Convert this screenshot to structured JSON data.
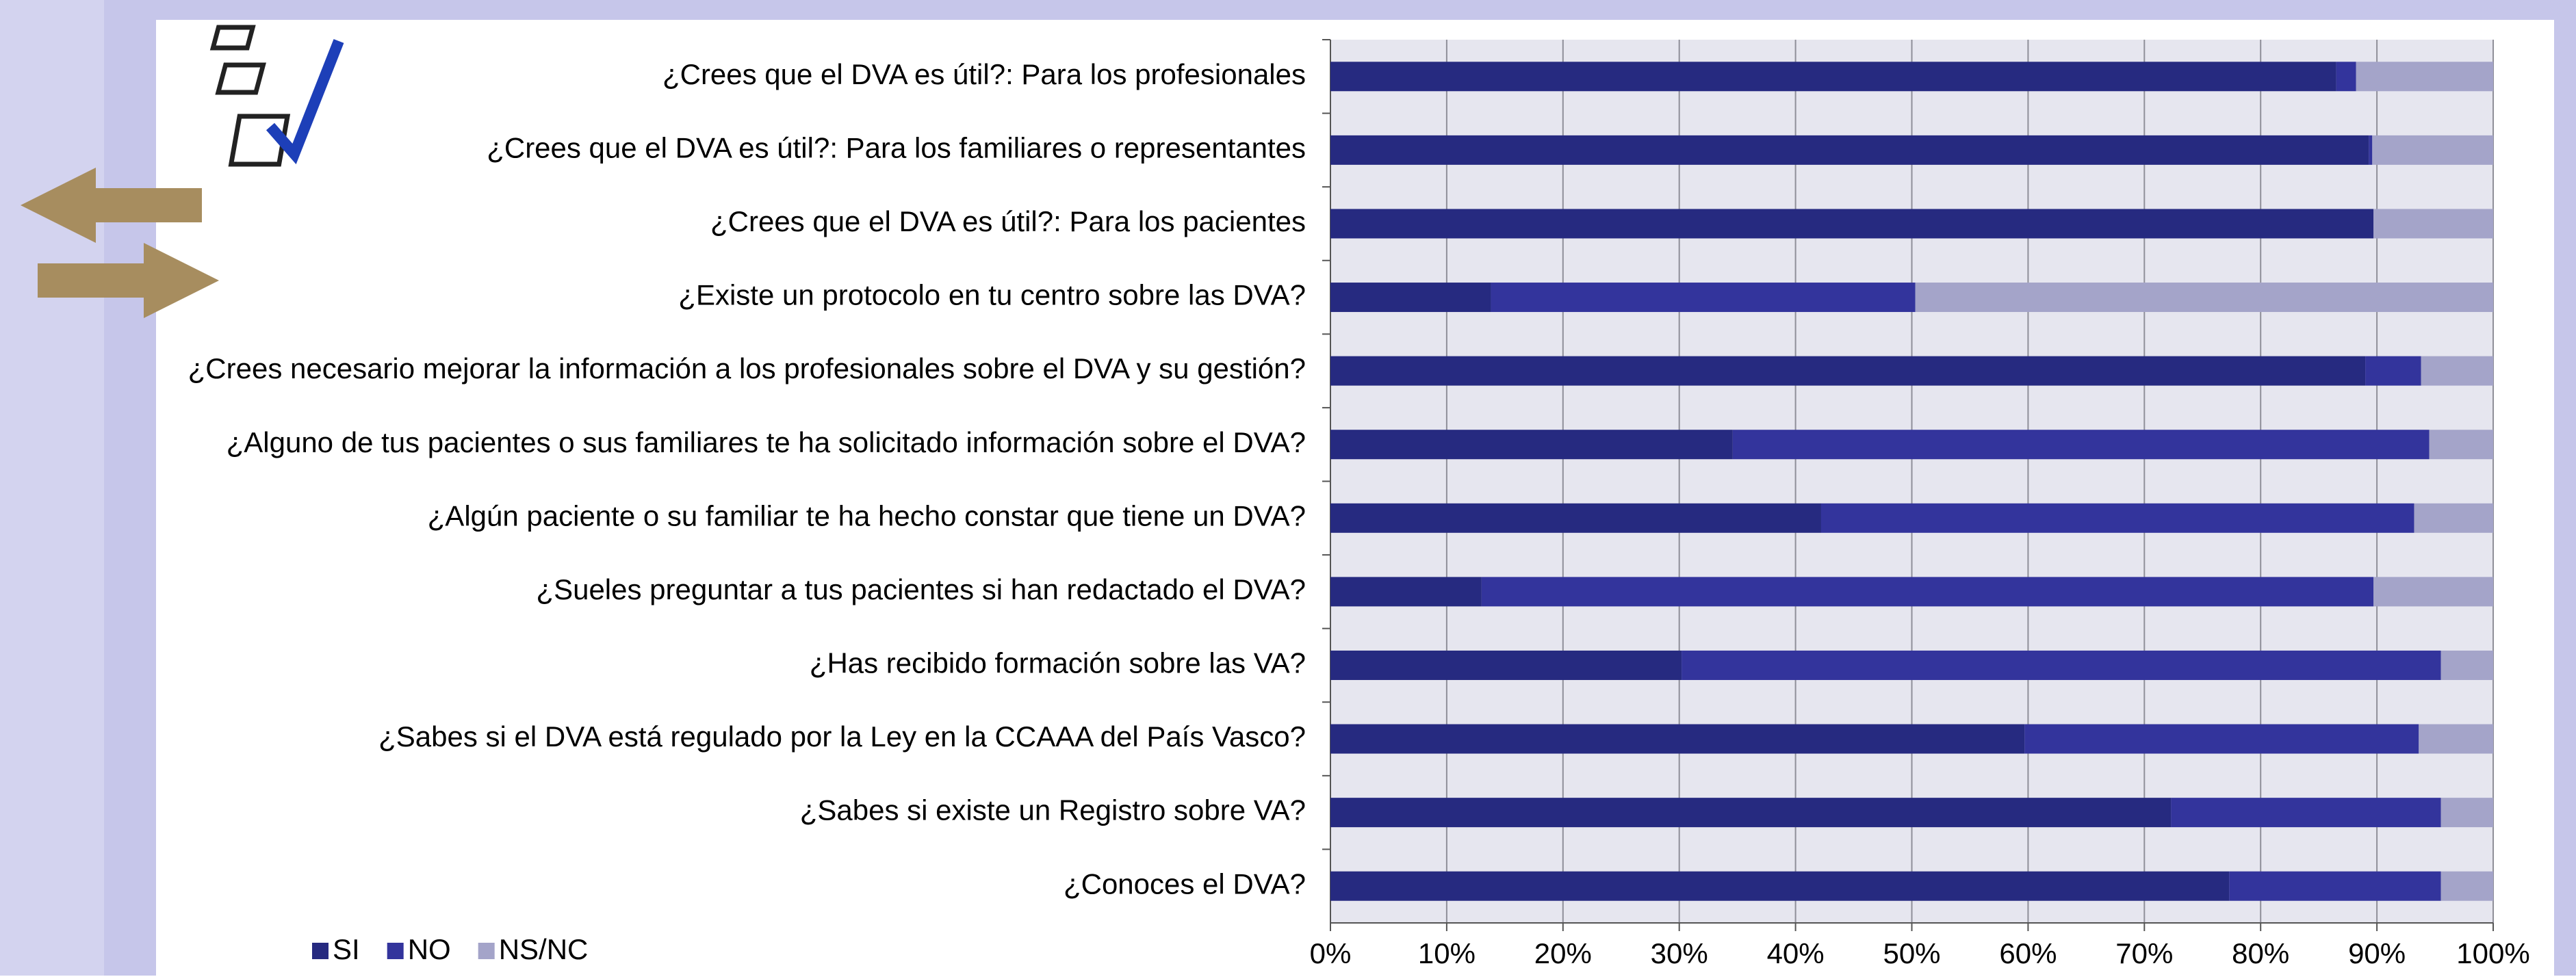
{
  "chart_data": {
    "type": "stacked-bar-horizontal",
    "categories": [
      "¿Crees que el DVA es útil?: Para los profesionales",
      "¿Crees que el DVA es útil?: Para los familiares o representantes",
      "¿Crees que el DVA es útil?: Para los pacientes",
      "¿Existe un protocolo en tu centro sobre las DVA?",
      "¿Crees necesario mejorar la información a los profesionales sobre el DVA y su gestión?",
      "¿Alguno de tus pacientes o sus familiares te ha solicitado información sobre el DVA?",
      "¿Algún paciente o su familiar te ha hecho constar que tiene un DVA?",
      "¿Sueles preguntar a tus pacientes si han redactado el DVA?",
      "¿Has recibido formación sobre las VA?",
      "¿Sabes si el DVA está regulado por la Ley en la CCAAA del País Vasco?",
      "¿Sabes si existe un Registro sobre VA?",
      "¿Conoces el DVA?"
    ],
    "series": [
      {
        "name": "SI",
        "color": "#262a80",
        "values": [
          86.5,
          89.3,
          89.7,
          13.8,
          89.0,
          34.6,
          42.2,
          13.0,
          30.2,
          59.7,
          72.3,
          77.3
        ]
      },
      {
        "name": "NO",
        "color": "#33349c",
        "values": [
          1.7,
          0.3,
          0,
          36.5,
          4.8,
          59.9,
          51.0,
          76.7,
          65.3,
          33.9,
          23.2,
          18.2
        ]
      },
      {
        "name": "NS/NC",
        "color": "#a4a4c9",
        "values": [
          11.8,
          10.4,
          10.3,
          49.7,
          6.2,
          5.5,
          6.8,
          10.3,
          4.5,
          6.4,
          4.5,
          4.5
        ]
      }
    ],
    "xlim": [
      0,
      100
    ],
    "xticks": [
      {
        "value": 0,
        "label": "0%"
      },
      {
        "value": 10,
        "label": "10%"
      },
      {
        "value": 20,
        "label": "20%"
      },
      {
        "value": 30,
        "label": "30%"
      },
      {
        "value": 40,
        "label": "40%"
      },
      {
        "value": 50,
        "label": "50%"
      },
      {
        "value": 60,
        "label": "60%"
      },
      {
        "value": 70,
        "label": "70%"
      },
      {
        "value": 80,
        "label": "80%"
      },
      {
        "value": 90,
        "label": "90%"
      },
      {
        "value": 100,
        "label": "100%"
      }
    ],
    "grid": true,
    "legend": "bottom-left"
  }
}
